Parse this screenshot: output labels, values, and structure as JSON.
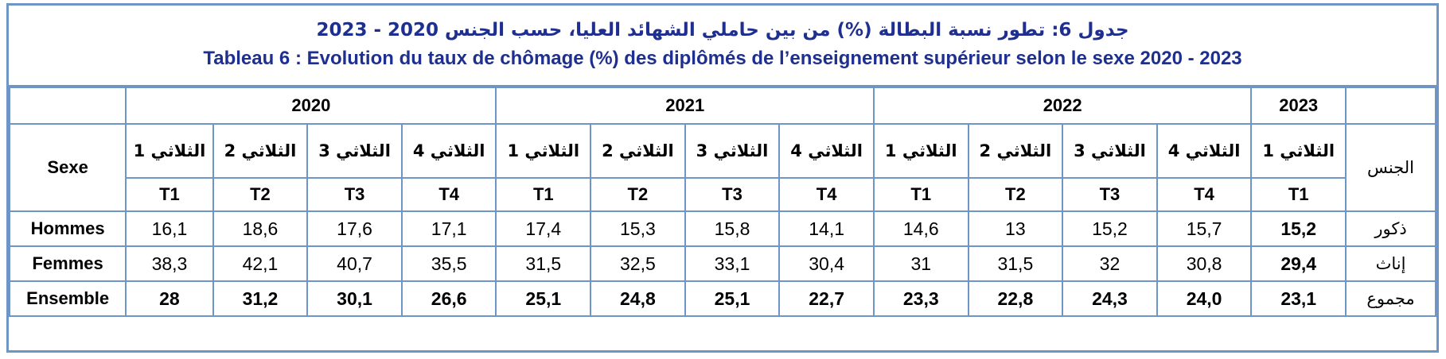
{
  "title_ar": "جدول 6: تطور نسبة البطالة (%) من بين حاملي الشهائد العليا، حسب الجنس 2020 - 2023",
  "title_fr": "Tableau 6 : Evolution du taux de chômage (%) des diplômés de l’enseignement supérieur selon le sexe 2020 - 2023",
  "col_label_fr": "Sexe",
  "col_label_ar": "الجنس",
  "years": [
    "2020",
    "2021",
    "2022",
    "2023"
  ],
  "quarters_ar": [
    "الثلاثي 1",
    "الثلاثي 2",
    "الثلاثي 3",
    "الثلاثي 4",
    "الثلاثي 1",
    "الثلاثي 2",
    "الثلاثي 3",
    "الثلاثي 4",
    "الثلاثي 1",
    "الثلاثي 2",
    "الثلاثي 3",
    "الثلاثي 4",
    "الثلاثي 1"
  ],
  "quarters_fr": [
    "T1",
    "T2",
    "T3",
    "T4",
    "T1",
    "T2",
    "T3",
    "T4",
    "T1",
    "T2",
    "T3",
    "T4",
    "T1"
  ],
  "rows": [
    {
      "label_fr": "Hommes",
      "label_ar": "ذكور",
      "values": [
        "16,1",
        "18,6",
        "17,6",
        "17,1",
        "17,4",
        "15,3",
        "15,8",
        "14,1",
        "14,6",
        "13",
        "15,2",
        "15,7",
        "15,2"
      ]
    },
    {
      "label_fr": "Femmes",
      "label_ar": "إناث",
      "values": [
        "38,3",
        "42,1",
        "40,7",
        "35,5",
        "31,5",
        "32,5",
        "33,1",
        "30,4",
        "31",
        "31,5",
        "32",
        "30,8",
        "29,4"
      ]
    },
    {
      "label_fr": "Ensemble",
      "label_ar": "مجموع",
      "values": [
        "28",
        "31,2",
        "30,1",
        "26,6",
        "25,1",
        "24,8",
        "25,1",
        "22,7",
        "23,3",
        "22,8",
        "24,3",
        "24,0",
        "23,1"
      ]
    }
  ]
}
